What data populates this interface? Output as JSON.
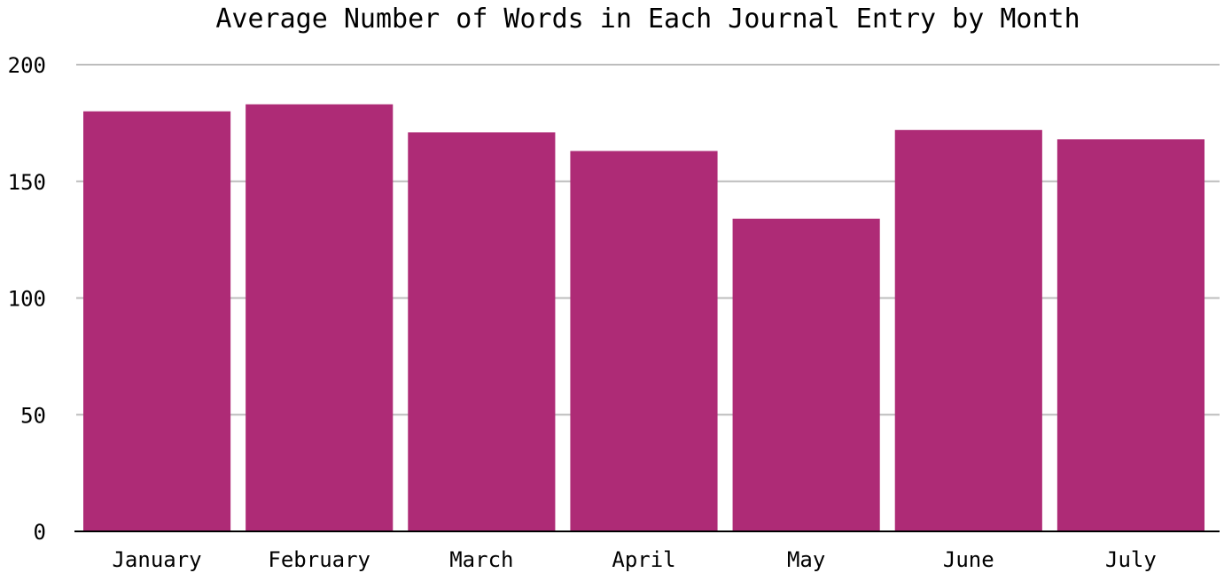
{
  "chart_data": {
    "type": "bar",
    "title": "Average Number of Words in Each Journal Entry by Month",
    "xlabel": "",
    "ylabel": "",
    "categories": [
      "January",
      "February",
      "March",
      "April",
      "May",
      "June",
      "July"
    ],
    "values": [
      180,
      183,
      171,
      163,
      134,
      172,
      168
    ],
    "ylim": [
      0,
      200
    ],
    "yticks": [
      "0",
      "50",
      "100",
      "150",
      "200"
    ],
    "grid": true,
    "legend": "none",
    "colors": {
      "bar": "#ae2b76",
      "grid": "#bdbdbd",
      "axis": "#000000"
    }
  }
}
